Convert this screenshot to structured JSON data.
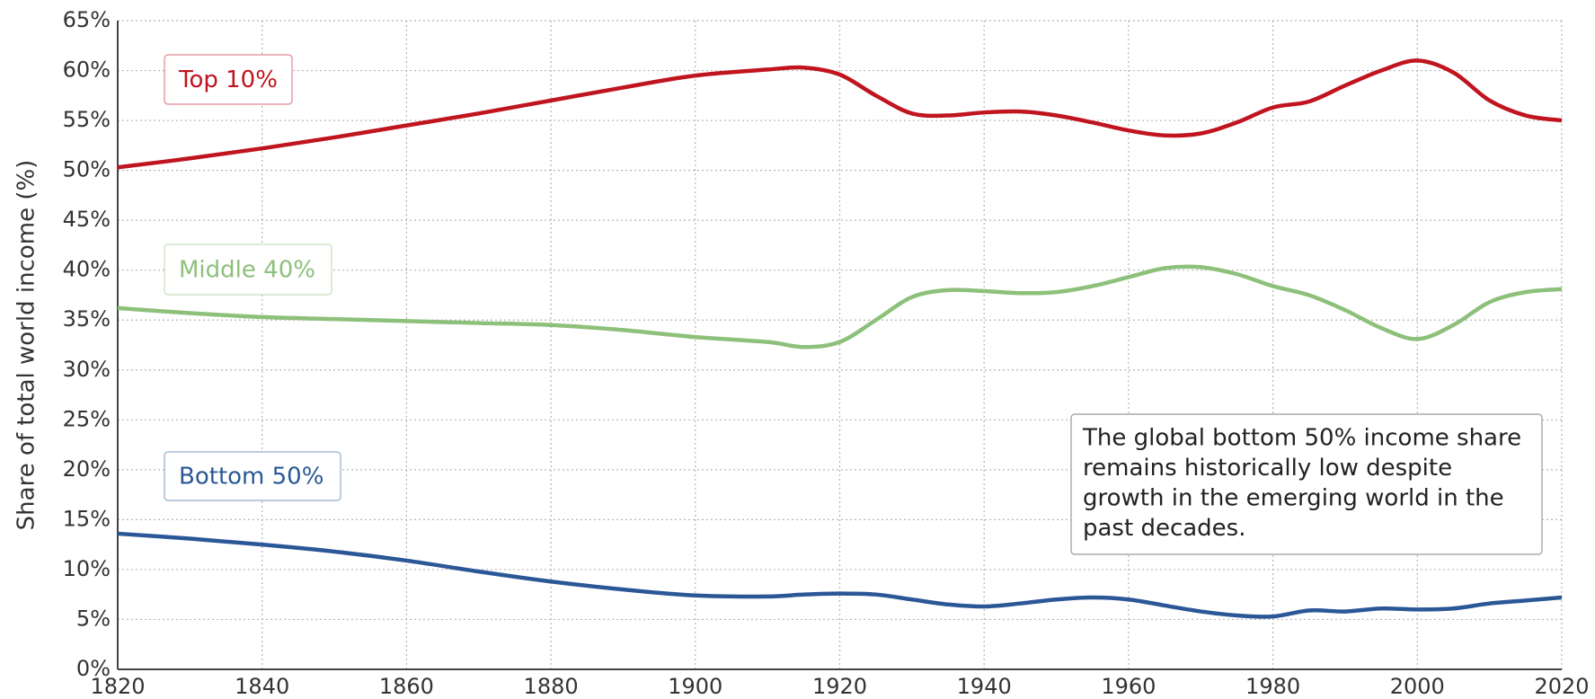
{
  "chart_data": {
    "type": "line",
    "ylabel": "Share of total world income (%)",
    "x": [
      1820,
      1830,
      1840,
      1850,
      1860,
      1870,
      1880,
      1890,
      1900,
      1910,
      1915,
      1920,
      1925,
      1930,
      1935,
      1940,
      1945,
      1950,
      1955,
      1960,
      1965,
      1970,
      1975,
      1980,
      1985,
      1990,
      1995,
      2000,
      2005,
      2010,
      2015,
      2020
    ],
    "series": [
      {
        "name": "Top 10%",
        "color": "#c0141f",
        "values": [
          50.3,
          51.2,
          52.2,
          53.3,
          54.5,
          55.7,
          57,
          58.3,
          59.5,
          60.1,
          60.3,
          59.6,
          57.5,
          55.7,
          55.5,
          55.8,
          55.9,
          55.5,
          54.8,
          54,
          53.5,
          53.7,
          54.8,
          56.3,
          56.9,
          58.5,
          60,
          61,
          59.8,
          57,
          55.5,
          55
        ]
      },
      {
        "name": "Middle 40%",
        "color": "#8dc07a",
        "values": [
          36.2,
          35.7,
          35.3,
          35.1,
          34.9,
          34.7,
          34.5,
          34,
          33.3,
          32.8,
          32.3,
          32.8,
          35,
          37.3,
          38,
          37.9,
          37.7,
          37.8,
          38.4,
          39.3,
          40.2,
          40.3,
          39.6,
          38.4,
          37.5,
          36,
          34.2,
          33.1,
          34.5,
          36.8,
          37.8,
          38.1
        ]
      },
      {
        "name": "Bottom 50%",
        "color": "#2b5797",
        "values": [
          13.6,
          13.1,
          12.5,
          11.8,
          10.9,
          9.8,
          8.8,
          8,
          7.4,
          7.3,
          7.5,
          7.6,
          7.5,
          7,
          6.5,
          6.3,
          6.6,
          7,
          7.2,
          7,
          6.4,
          5.8,
          5.4,
          5.3,
          5.9,
          5.8,
          6.1,
          6,
          6.1,
          6.6,
          6.9,
          7.2
        ]
      }
    ],
    "annotation": [
      "The global bottom 50% income share",
      "remains historically low despite",
      "growth in the emerging world in the",
      "past decades."
    ],
    "xlim": [
      1820,
      2020
    ],
    "xticks": [
      1820,
      1840,
      1860,
      1880,
      1900,
      1920,
      1940,
      1960,
      1980,
      2000,
      2020
    ],
    "ylim": [
      0,
      65
    ],
    "yticks": [
      {
        "value": 0,
        "label": "0%"
      },
      {
        "value": 5,
        "label": "5%"
      },
      {
        "value": 10,
        "label": "10%"
      },
      {
        "value": 15,
        "label": "15%"
      },
      {
        "value": 20,
        "label": "20%"
      },
      {
        "value": 25,
        "label": "25%"
      },
      {
        "value": 30,
        "label": "30%"
      },
      {
        "value": 35,
        "label": "35%"
      },
      {
        "value": 40,
        "label": "40%"
      },
      {
        "value": 45,
        "label": "45%"
      },
      {
        "value": 50,
        "label": "50%"
      },
      {
        "value": 55,
        "label": "55%"
      },
      {
        "value": 60,
        "label": "60%"
      },
      {
        "value": 65,
        "label": "65%"
      }
    ],
    "grid": true
  }
}
